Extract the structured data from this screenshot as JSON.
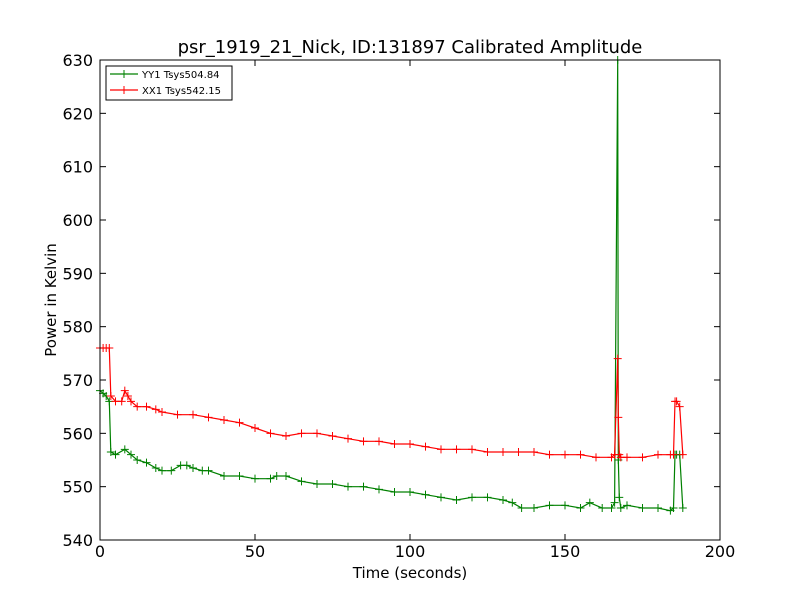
{
  "chart_data": {
    "type": "line",
    "title": "psr_1919_21_Nick, ID:131897 Calibrated Amplitude",
    "xlabel": "Time (seconds)",
    "ylabel": "Power in Kelvin",
    "xlim": [
      0,
      200
    ],
    "ylim": [
      540,
      630
    ],
    "xticks": [
      0,
      50,
      100,
      150,
      200
    ],
    "yticks": [
      540,
      550,
      560,
      570,
      580,
      590,
      600,
      610,
      620,
      630
    ],
    "grid": false,
    "legend_position": "top-left",
    "marker": "+",
    "series": [
      {
        "name": "YY1 Tsys504.84",
        "color": "#008000",
        "x": [
          0,
          1,
          2,
          3,
          3.5,
          5,
          8,
          10,
          12,
          15,
          18,
          20,
          23,
          26,
          28,
          30,
          33,
          35,
          40,
          45,
          50,
          55,
          57,
          60,
          65,
          70,
          75,
          80,
          85,
          90,
          95,
          100,
          105,
          110,
          115,
          120,
          125,
          130,
          133,
          136,
          140,
          145,
          150,
          155,
          158,
          162,
          165,
          166,
          167,
          167.2,
          167.5,
          168,
          170,
          175,
          180,
          184,
          185,
          185.5,
          186,
          187,
          188
        ],
        "y": [
          568,
          567.5,
          567,
          566,
          556.5,
          556,
          557,
          556,
          555,
          554.5,
          553.5,
          553,
          553,
          554,
          554,
          553.5,
          553,
          553,
          552,
          552,
          551.5,
          551.5,
          552,
          552,
          551,
          550.5,
          550.5,
          550,
          550,
          549.5,
          549,
          549,
          548.5,
          548,
          547.5,
          548,
          548,
          547.5,
          547,
          546,
          546,
          546.5,
          546.5,
          546,
          547,
          546,
          546,
          547,
          630,
          555,
          548,
          546,
          546.5,
          546,
          546,
          545.5,
          546,
          556,
          556,
          556,
          546
        ]
      },
      {
        "name": "XX1 Tsys542.15",
        "color": "#ff0000",
        "x": [
          0,
          1,
          2,
          3,
          3.5,
          5,
          7,
          8,
          9,
          10,
          12,
          15,
          18,
          20,
          25,
          30,
          35,
          40,
          45,
          50,
          55,
          60,
          65,
          70,
          75,
          80,
          85,
          90,
          95,
          100,
          105,
          110,
          115,
          120,
          125,
          130,
          135,
          140,
          145,
          150,
          155,
          160,
          165,
          166,
          167,
          167.2,
          167.5,
          168,
          170,
          175,
          180,
          184,
          185,
          185.5,
          186,
          187,
          188
        ],
        "y": [
          576,
          576,
          576,
          576,
          567,
          566,
          566,
          568,
          567,
          566,
          565,
          565,
          564.5,
          564,
          563.5,
          563.5,
          563,
          562.5,
          562,
          561,
          560,
          559.5,
          560,
          560,
          559.5,
          559,
          558.5,
          558.5,
          558,
          558,
          557.5,
          557,
          557,
          557,
          556.5,
          556.5,
          556.5,
          556.5,
          556,
          556,
          556,
          555.5,
          555.5,
          556,
          574,
          563,
          556,
          555.5,
          555.5,
          555.5,
          556,
          556,
          556,
          566,
          566,
          565,
          556
        ]
      }
    ]
  }
}
